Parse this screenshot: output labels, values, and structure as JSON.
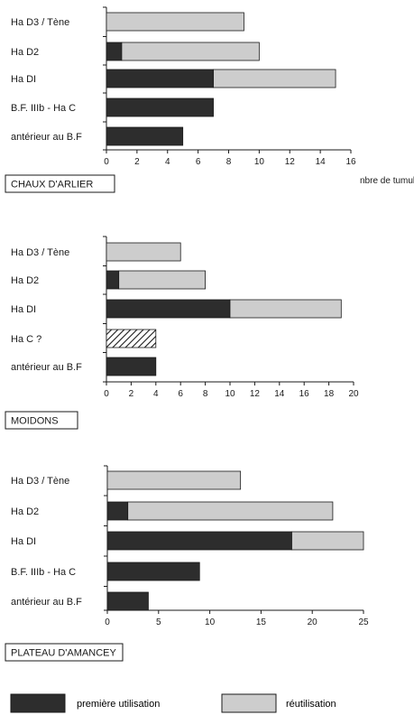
{
  "chart_data": [
    {
      "type": "bar",
      "orientation": "horizontal",
      "stacked": true,
      "title": "CHAUX D'ARLIER",
      "xlabel": "nbre de tumulus",
      "xlim": [
        0,
        16
      ],
      "xticks": [
        0,
        2,
        4,
        6,
        8,
        10,
        12,
        14,
        16
      ],
      "categories": [
        "Ha D3 / Tène",
        "Ha D2",
        "Ha DI",
        "B.F. IIIb - Ha C",
        "antérieur au B.F"
      ],
      "series": [
        {
          "name": "première utilisation",
          "values": [
            0,
            1,
            7,
            7,
            5
          ]
        },
        {
          "name": "réutilisation",
          "values": [
            9,
            9,
            8,
            0,
            0
          ]
        }
      ]
    },
    {
      "type": "bar",
      "orientation": "horizontal",
      "stacked": true,
      "title": "MOIDONS",
      "xlabel": "",
      "xlim": [
        0,
        20
      ],
      "xticks": [
        0,
        2,
        4,
        6,
        8,
        10,
        12,
        14,
        16,
        18,
        20
      ],
      "categories": [
        "Ha D3 / Tène",
        "Ha D2",
        "Ha DI",
        "Ha C ?",
        "antérieur au B.F"
      ],
      "series": [
        {
          "name": "première utilisation",
          "values": [
            0,
            1,
            10,
            0,
            4
          ]
        },
        {
          "name": "réutilisation",
          "values": [
            6,
            7,
            9,
            0,
            0
          ]
        },
        {
          "values": [
            0,
            0,
            0,
            4,
            0
          ]
        }
      ]
    },
    {
      "type": "bar",
      "orientation": "horizontal",
      "stacked": true,
      "title": "PLATEAU D'AMANCEY",
      "xlabel": "",
      "xlim": [
        0,
        25
      ],
      "xticks": [
        0,
        5,
        10,
        15,
        20,
        25
      ],
      "categories": [
        "Ha D3 / Tène",
        "Ha D2",
        "Ha DI",
        "B.F. IIIb - Ha C",
        "antérieur au B.F"
      ],
      "series": [
        {
          "name": "première utilisation",
          "values": [
            0,
            2,
            18,
            9,
            4
          ]
        },
        {
          "name": "réutilisation",
          "values": [
            13,
            20,
            7,
            0,
            0
          ]
        }
      ]
    }
  ],
  "legend": {
    "first_use_label": "première utilisation",
    "reuse_label": "réutilisation"
  },
  "colors": {
    "first_use": "#2d2d2d",
    "reuse": "#cdcdcd",
    "hatch": "#1a1a1a",
    "axis": "#1a1a1a"
  }
}
